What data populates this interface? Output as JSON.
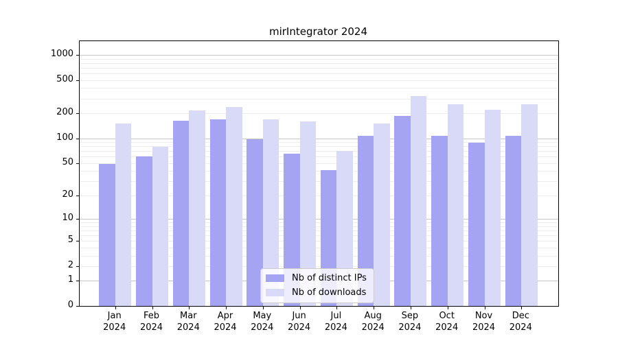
{
  "chart_data": {
    "type": "bar",
    "title": "mirIntegrator 2024",
    "categories": [
      "Jan",
      "Feb",
      "Mar",
      "Apr",
      "May",
      "Jun",
      "Jul",
      "Aug",
      "Sep",
      "Oct",
      "Nov",
      "Dec"
    ],
    "year": "2024",
    "series": [
      {
        "name": "Nb of distinct IPs",
        "color": "#a4a4f2",
        "values": [
          49,
          60,
          162,
          169,
          97,
          65,
          41,
          107,
          185,
          107,
          89,
          107
        ]
      },
      {
        "name": "Nb of downloads",
        "color": "#d9d9f8",
        "values": [
          150,
          79,
          216,
          236,
          168,
          158,
          70,
          152,
          319,
          255,
          220,
          255
        ]
      }
    ],
    "y_ticks": [
      0,
      1,
      2,
      5,
      10,
      20,
      50,
      100,
      200,
      500,
      1000
    ],
    "yscale": "log(1+x)",
    "ylim": [
      0,
      1460
    ],
    "xlabel": "",
    "ylabel": "",
    "grid": "horizontal major+minor",
    "legend_position": "lower center"
  }
}
